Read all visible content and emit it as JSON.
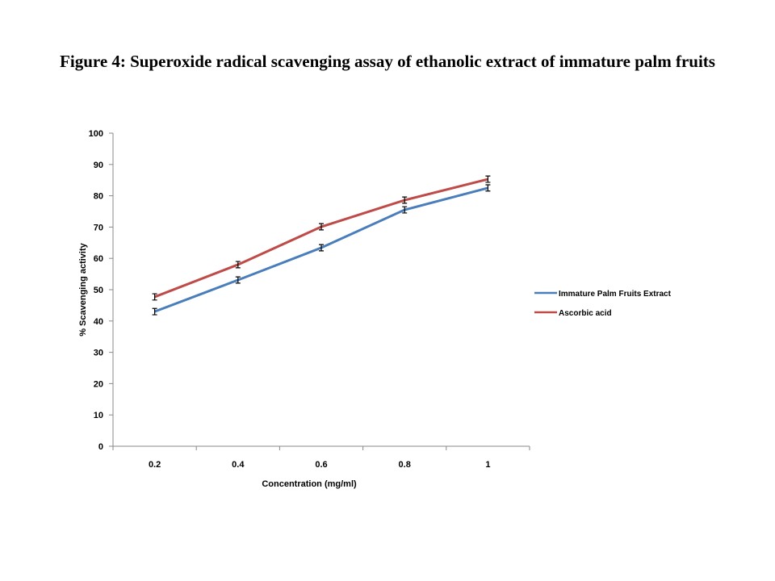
{
  "chart_data": {
    "type": "line",
    "title": "Figure 4: Superoxide radical scavenging assay of ethanolic extract of immature palm fruits",
    "xlabel": "Concentration (mg/ml)",
    "ylabel": "% Scavenging activity",
    "categories": [
      "0.2",
      "0.4",
      "0.6",
      "0.8",
      "1"
    ],
    "ylim": [
      0,
      100
    ],
    "yticks": [
      "0",
      "10",
      "20",
      "30",
      "40",
      "50",
      "60",
      "70",
      "80",
      "90",
      "100"
    ],
    "grid": false,
    "legend_position": "right",
    "series": [
      {
        "name": "Immature  Palm Fruits Extract",
        "color": "#4a7ebb",
        "values": [
          43.0,
          53.1,
          63.4,
          75.5,
          82.5
        ],
        "errors": [
          1,
          1,
          1,
          1,
          1
        ]
      },
      {
        "name": "Ascorbic acid",
        "color": "#be4b48",
        "values": [
          47.7,
          58.0,
          70.1,
          78.6,
          85.3
        ],
        "errors": [
          1,
          1,
          1,
          1,
          1
        ]
      }
    ]
  }
}
